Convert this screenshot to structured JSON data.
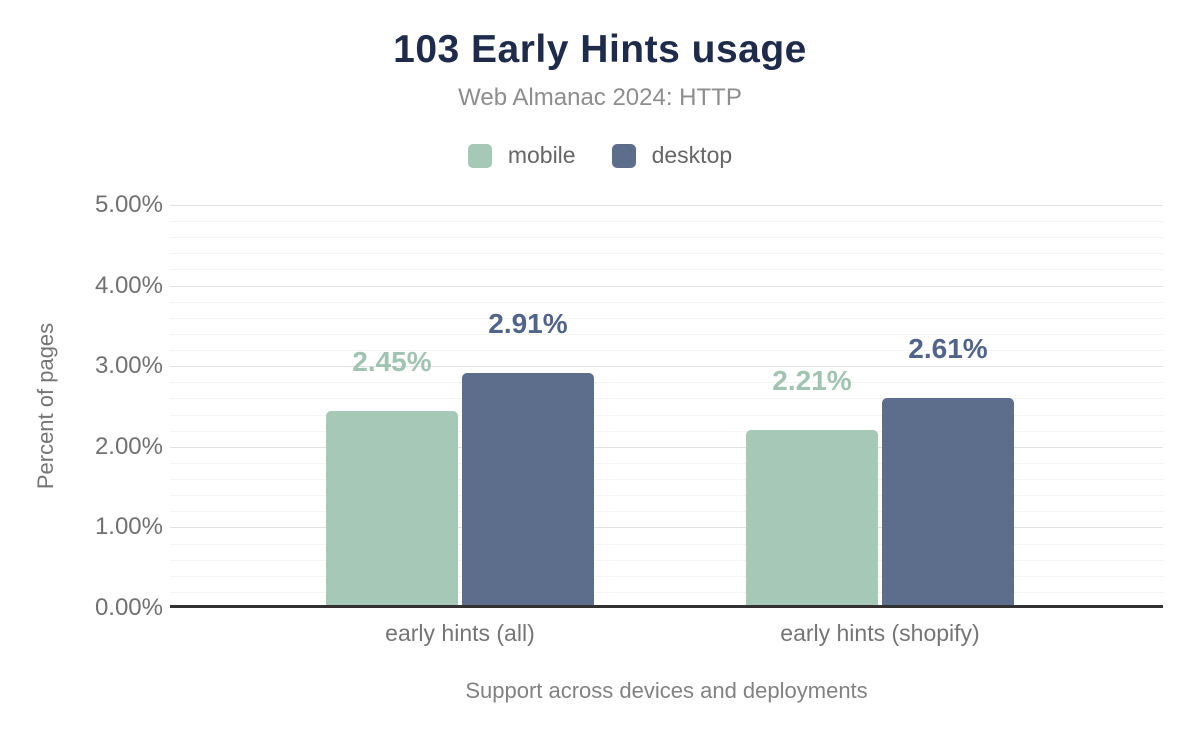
{
  "header": {
    "title": "103 Early Hints usage",
    "subtitle": "Web Almanac 2024: HTTP"
  },
  "legend": [
    {
      "label": "mobile",
      "color": "#a6c8b6",
      "icon": "legend-swatch-square"
    },
    {
      "label": "desktop",
      "color": "#5c6e8c",
      "icon": "legend-swatch-square"
    }
  ],
  "chart_data": {
    "type": "bar",
    "title": "103 Early Hints usage",
    "subtitle": "Web Almanac 2024: HTTP",
    "categories": [
      "early hints (all)",
      "early hints (shopify)"
    ],
    "series": [
      {
        "name": "mobile",
        "color": "#a6c8b6",
        "label_color": "#a0c4b1",
        "values": [
          2.45,
          2.21
        ],
        "labels": [
          "2.45%",
          "2.21%"
        ]
      },
      {
        "name": "desktop",
        "color": "#5c6e8c",
        "label_color": "#51648c",
        "values": [
          2.91,
          2.61
        ],
        "labels": [
          "2.91%",
          "2.61%"
        ]
      }
    ],
    "xlabel": "Support across devices and deployments",
    "ylabel": "Percent of pages",
    "ylim": [
      0,
      5
    ],
    "yticks": [
      {
        "value": 0,
        "label": "0.00%"
      },
      {
        "value": 1,
        "label": "1.00%"
      },
      {
        "value": 2,
        "label": "2.00%"
      },
      {
        "value": 3,
        "label": "3.00%"
      },
      {
        "value": 4,
        "label": "4.00%"
      },
      {
        "value": 5,
        "label": "5.00%"
      }
    ],
    "grid": {
      "major_step": 1,
      "minor_step": 0.2,
      "grid_on": true
    },
    "legend_position": "top",
    "axis_line_color": "#323232"
  }
}
